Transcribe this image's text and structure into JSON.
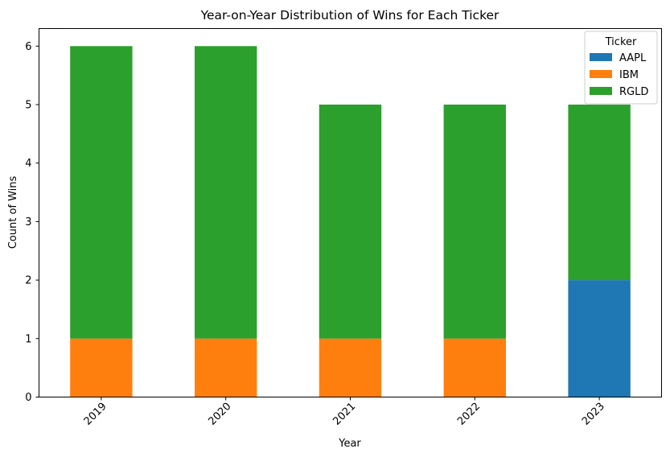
{
  "chart_data": {
    "type": "bar",
    "stacked": true,
    "title": "Year-on-Year Distribution of Wins for Each Ticker",
    "xlabel": "Year",
    "ylabel": "Count of Wins",
    "categories": [
      "2019",
      "2020",
      "2021",
      "2022",
      "2023"
    ],
    "ylim": [
      0,
      6.3
    ],
    "yticks": [
      0,
      1,
      2,
      3,
      4,
      5,
      6
    ],
    "legend": {
      "title": "Ticker",
      "placement": "top-right"
    },
    "grid": false,
    "series": [
      {
        "name": "AAPL",
        "color": "#1f77b4",
        "values": [
          0,
          0,
          0,
          0,
          2
        ]
      },
      {
        "name": "IBM",
        "color": "#ff7f0e",
        "values": [
          1,
          1,
          1,
          1,
          0
        ]
      },
      {
        "name": "RGLD",
        "color": "#2ca02c",
        "values": [
          5,
          5,
          4,
          4,
          3
        ]
      }
    ]
  }
}
